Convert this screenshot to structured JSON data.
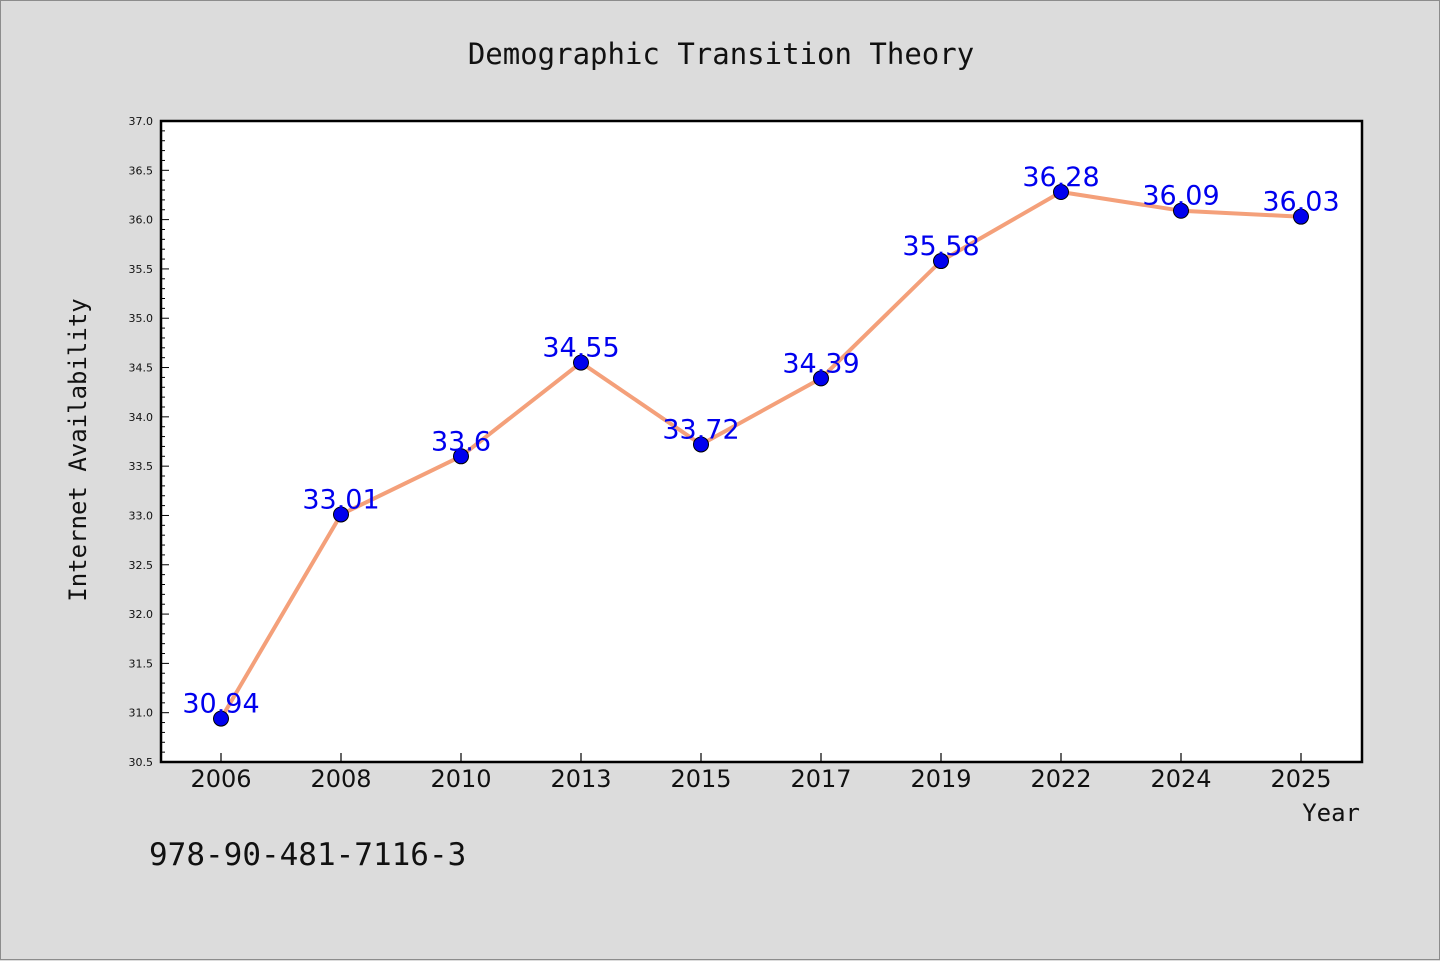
{
  "chart_data": {
    "type": "line",
    "title": "Demographic Transition Theory",
    "xlabel": "Year",
    "ylabel": "Internet Availability",
    "categories": [
      "2006",
      "2008",
      "2010",
      "2013",
      "2015",
      "2017",
      "2019",
      "2022",
      "2024",
      "2025"
    ],
    "values": [
      30.94,
      33.01,
      33.6,
      34.55,
      33.72,
      34.39,
      35.58,
      36.28,
      36.09,
      36.03
    ],
    "data_labels": [
      "30.94",
      "33.01",
      "33.6",
      "34.55",
      "33.72",
      "34.39",
      "35.58",
      "36.28",
      "36.09",
      "36.03"
    ],
    "ylim": [
      30.5,
      37.0
    ],
    "yticks": [
      "30.5",
      "31.0",
      "31.5",
      "32.0",
      "32.5",
      "33.0",
      "33.5",
      "34.0",
      "34.5",
      "35.0",
      "35.5",
      "36.0",
      "36.5",
      "37.0"
    ],
    "grid": false,
    "legend": "none",
    "line_color": "#f4a07a",
    "marker_color": "#0000ee",
    "label_color": "#0000ee"
  },
  "annotation": "978-90-481-7116-3"
}
